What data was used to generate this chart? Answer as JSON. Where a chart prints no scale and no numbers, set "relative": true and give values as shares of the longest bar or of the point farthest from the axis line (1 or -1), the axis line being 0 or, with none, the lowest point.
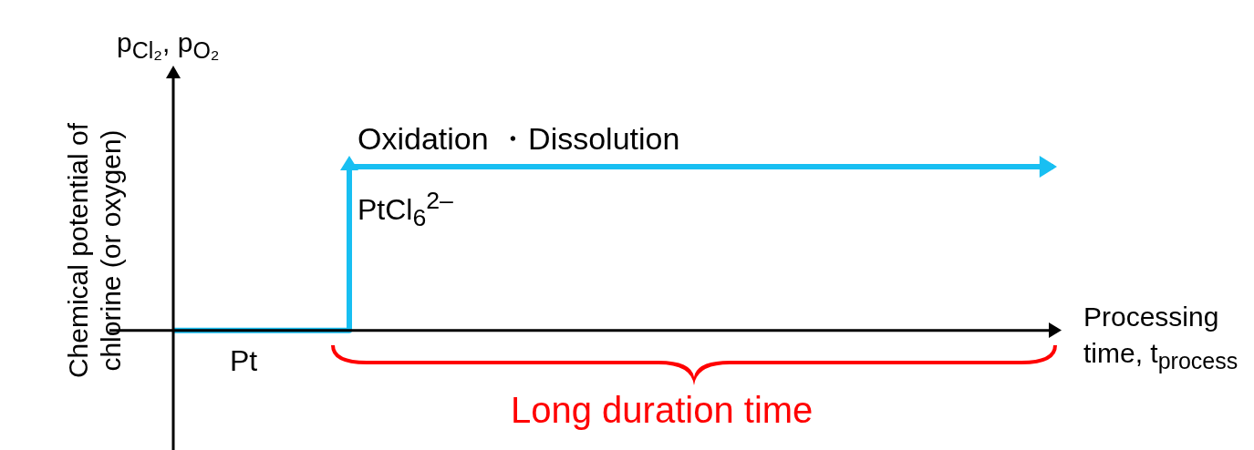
{
  "chart_data": {
    "type": "step",
    "relative": true,
    "categories": [
      null,
      null,
      null,
      null,
      null,
      null
    ],
    "series": [
      {
        "color": "#18bff2",
        "values": [
          0,
          1,
          1,
          1,
          1,
          1
        ]
      }
    ],
    "ylabel": "Chemical potential of chlorine (or oxygen)",
    "xlabel": "Processing time, t$_{process}$",
    "annotations": [
      "p$_{Cl₂}$, p$_{O₂}$",
      "Oxidation ・Dissolution",
      "PtCl$_{6}$$^{2–}$",
      "Pt",
      "Long duration time"
    ],
    "legend": false,
    "marker": "none"
  }
}
